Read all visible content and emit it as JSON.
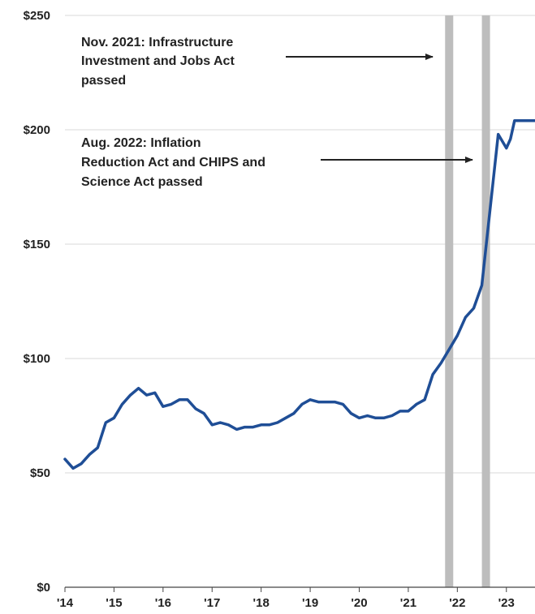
{
  "chart_data": {
    "type": "line",
    "title": "",
    "xlabel": "",
    "ylabel": "",
    "ylim": [
      0,
      250
    ],
    "xlim": [
      "2014-01",
      "2023-08"
    ],
    "grid": true,
    "y_ticks": [
      0,
      50,
      100,
      150,
      200,
      250
    ],
    "y_tick_labels": [
      "$0",
      "$50",
      "$100",
      "$150",
      "$200",
      "$250"
    ],
    "x_ticks": [
      2014,
      2015,
      2016,
      2017,
      2018,
      2019,
      2020,
      2021,
      2022,
      2023
    ],
    "x_tick_labels": [
      "'14",
      "'15",
      "'16",
      "'17",
      "'18",
      "'19",
      "'20",
      "'21",
      "'22",
      "'23"
    ],
    "colors": {
      "line": "#1f4e96",
      "band": "#bdbdbd",
      "text": "#222222",
      "grid": "#d9d9d9"
    },
    "series": [
      {
        "x": [
          "2014-01",
          "2014-03",
          "2014-05",
          "2014-07",
          "2014-09",
          "2014-11",
          "2015-01",
          "2015-03",
          "2015-05",
          "2015-07",
          "2015-09",
          "2015-11",
          "2016-01",
          "2016-03",
          "2016-05",
          "2016-07",
          "2016-09",
          "2016-11",
          "2017-01",
          "2017-03",
          "2017-05",
          "2017-07",
          "2017-09",
          "2017-11",
          "2018-01",
          "2018-03",
          "2018-05",
          "2018-07",
          "2018-09",
          "2018-11",
          "2019-01",
          "2019-03",
          "2019-05",
          "2019-07",
          "2019-09",
          "2019-11",
          "2020-01",
          "2020-03",
          "2020-05",
          "2020-07",
          "2020-09",
          "2020-11",
          "2021-01",
          "2021-03",
          "2021-05",
          "2021-07",
          "2021-09",
          "2021-11",
          "2022-01",
          "2022-03",
          "2022-05",
          "2022-07",
          "2022-09",
          "2022-11",
          "2023-01",
          "2023-02",
          "2023-03",
          "2023-04",
          "2023-05",
          "2023-06",
          "2023-07",
          "2023-08"
        ],
        "values": [
          56,
          52,
          54,
          58,
          61,
          72,
          74,
          80,
          84,
          87,
          84,
          85,
          79,
          80,
          82,
          82,
          78,
          76,
          71,
          72,
          71,
          69,
          70,
          70,
          71,
          71,
          72,
          74,
          76,
          80,
          82,
          81,
          81,
          81,
          80,
          76,
          74,
          75,
          74,
          74,
          75,
          77,
          77,
          80,
          82,
          93,
          98,
          104,
          110,
          118,
          122,
          132,
          165,
          198,
          192,
          196,
          204,
          204,
          204,
          204,
          204,
          204
        ]
      }
    ],
    "bands": [
      {
        "x": "2021-11",
        "label": "Nov. 2021"
      },
      {
        "x": "2022-08",
        "label": "Aug. 2022"
      }
    ],
    "annotations": [
      {
        "lines": [
          "Nov. 2021: Infrastructure",
          "Investment and Jobs Act",
          "passed"
        ],
        "points_to": "2021-11"
      },
      {
        "lines": [
          "Aug. 2022: Inflation",
          "Reduction Act and CHIPS and",
          "Science Act passed"
        ],
        "points_to": "2022-08"
      }
    ]
  }
}
